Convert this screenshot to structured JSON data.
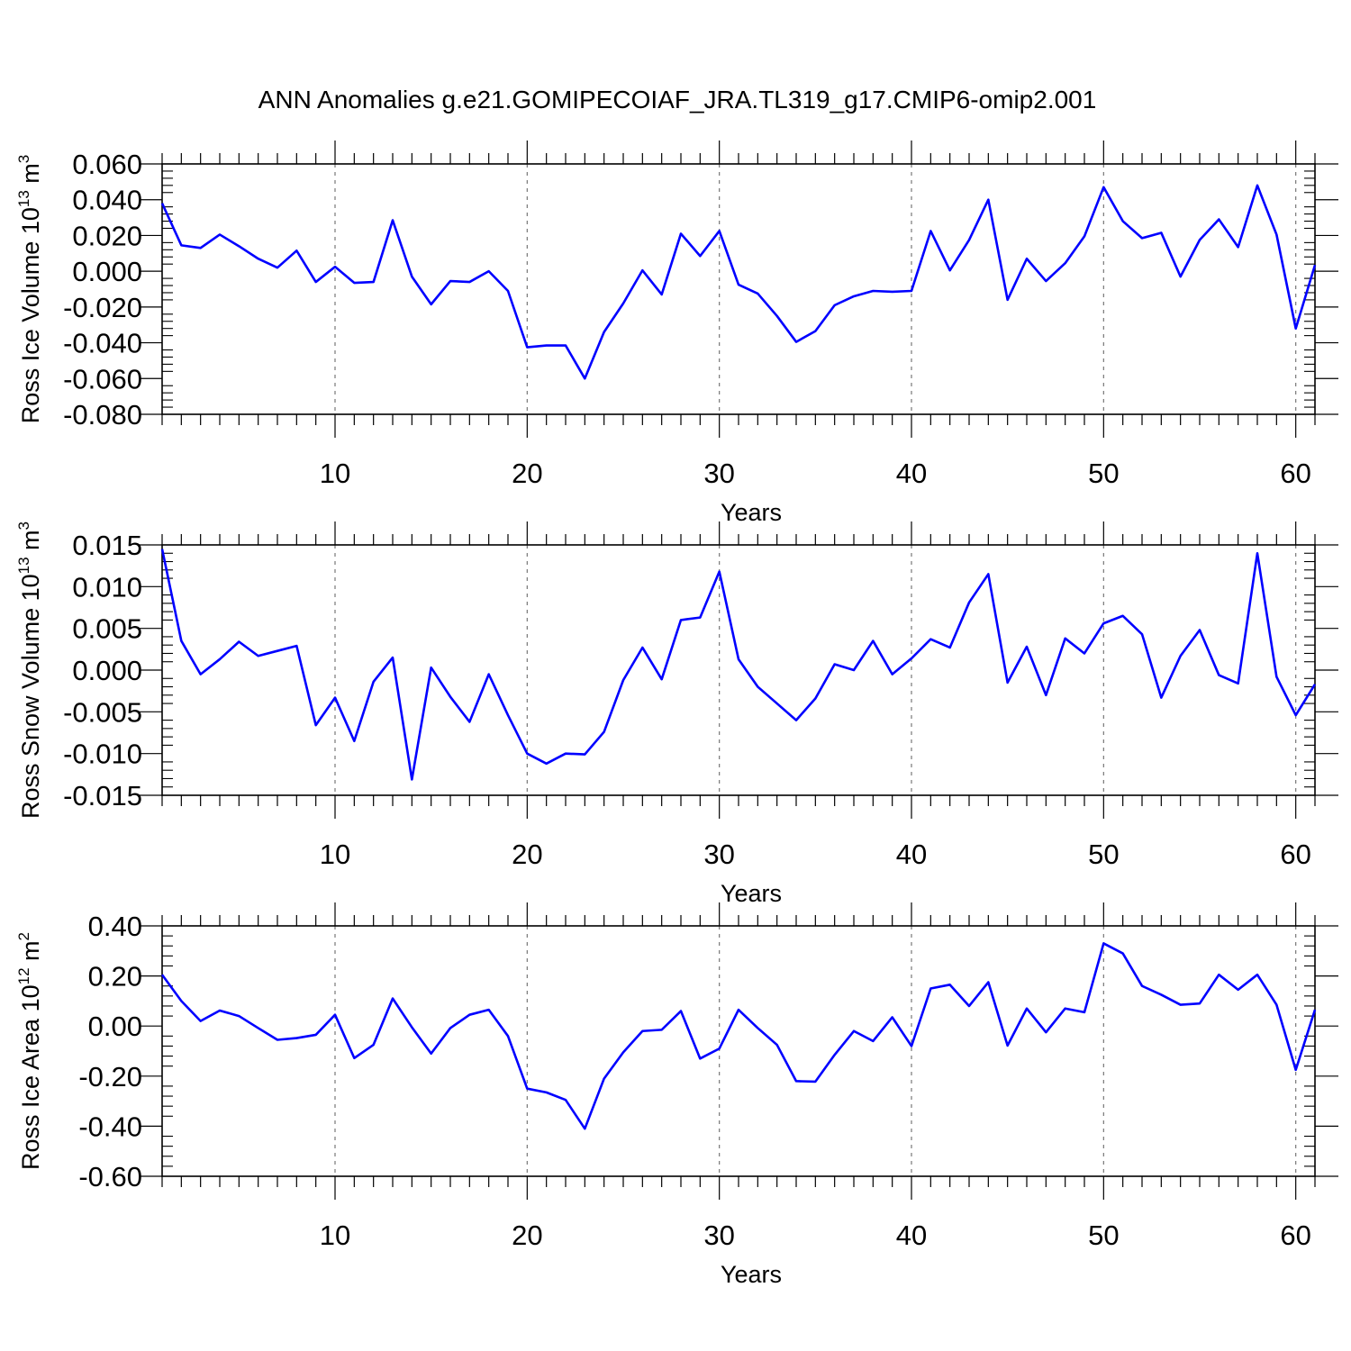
{
  "title": "ANN Anomalies g.e21.GOMIPECOIAF_JRA.TL319_g17.CMIP6-omip2.001",
  "colors": {
    "line": "#0000ff",
    "grid": "#777777",
    "axis": "#000000"
  },
  "chart_data": [
    {
      "type": "line",
      "ylabel": {
        "text": "Ross Ice Volume 10",
        "sup": "13",
        "unit": " m",
        "unit_sup": "3"
      },
      "xlabel": "Years",
      "xlim": [
        1,
        61
      ],
      "ylim": [
        -0.08,
        0.06
      ],
      "xticks": [
        10,
        20,
        30,
        40,
        50,
        60
      ],
      "yticks": [
        -0.08,
        -0.06,
        -0.04,
        -0.02,
        0.0,
        0.02,
        0.04,
        0.06
      ],
      "ytick_labels": [
        "-0.080",
        "-0.060",
        "-0.040",
        "-0.020",
        "0.000",
        "0.020",
        "0.040",
        "0.060"
      ],
      "grid_x": true,
      "series": [
        {
          "values": [
            0.038,
            0.0145,
            0.013,
            0.0205,
            0.014,
            0.007,
            0.002,
            0.0115,
            -0.006,
            0.0025,
            -0.0065,
            -0.006,
            0.0285,
            -0.003,
            -0.0185,
            -0.0055,
            -0.006,
            0.0,
            -0.011,
            -0.0425,
            -0.0415,
            -0.0415,
            -0.06,
            -0.034,
            -0.018,
            0.0005,
            -0.013,
            0.021,
            0.0085,
            0.0225,
            -0.0075,
            -0.0125,
            -0.025,
            -0.0395,
            -0.0335,
            -0.019,
            -0.014,
            -0.011,
            -0.0115,
            -0.011,
            0.0225,
            0.0005,
            0.0175,
            0.04,
            -0.016,
            0.007,
            -0.0055,
            0.0045,
            0.0195,
            0.047,
            0.028,
            0.0185,
            0.0215,
            -0.003,
            0.0175,
            0.029,
            0.0135,
            0.048,
            0.0205,
            -0.032,
            0.0035
          ]
        }
      ]
    },
    {
      "type": "line",
      "ylabel": {
        "text": "Ross Snow Volume 10",
        "sup": "13",
        "unit": " m",
        "unit_sup": "3"
      },
      "xlabel": "Years",
      "xlim": [
        1,
        61
      ],
      "ylim": [
        -0.015,
        0.015
      ],
      "xticks": [
        10,
        20,
        30,
        40,
        50,
        60
      ],
      "yticks": [
        -0.015,
        -0.01,
        -0.005,
        0.0,
        0.005,
        0.01,
        0.015
      ],
      "ytick_labels": [
        "-0.015",
        "-0.010",
        "-0.005",
        "0.000",
        "0.005",
        "0.010",
        "0.015"
      ],
      "grid_x": true,
      "series": [
        {
          "values": [
            0.0145,
            0.0035,
            -0.0005,
            0.0013,
            0.0034,
            0.0017,
            0.0023,
            0.0029,
            -0.0066,
            -0.0033,
            -0.0085,
            -0.0014,
            0.0015,
            -0.0131,
            0.0003,
            -0.0032,
            -0.0062,
            -0.0005,
            -0.0054,
            -0.01,
            -0.0112,
            -0.01,
            -0.0101,
            -0.0074,
            -0.0012,
            0.0027,
            -0.0011,
            0.006,
            0.0063,
            0.0118,
            0.0013,
            -0.002,
            -0.004,
            -0.006,
            -0.0034,
            0.0007,
            0.0,
            0.0035,
            -0.0005,
            0.0014,
            0.0037,
            0.0027,
            0.0081,
            0.0115,
            -0.0015,
            0.0028,
            -0.003,
            0.0038,
            0.002,
            0.0056,
            0.0065,
            0.0043,
            -0.0033,
            0.0017,
            0.0048,
            -0.0006,
            -0.0016,
            0.014,
            -0.0008,
            -0.0054,
            -0.0017
          ]
        }
      ]
    },
    {
      "type": "line",
      "ylabel": {
        "text": "Ross Ice Area 10",
        "sup": "12",
        "unit": " m",
        "unit_sup": "2"
      },
      "xlabel": "Years",
      "xlim": [
        1,
        61
      ],
      "ylim": [
        -0.6,
        0.4
      ],
      "xticks": [
        10,
        20,
        30,
        40,
        50,
        60
      ],
      "yticks": [
        -0.6,
        -0.4,
        -0.2,
        0.0,
        0.2,
        0.4
      ],
      "ytick_labels": [
        "-0.60",
        "-0.40",
        "-0.20",
        "0.00",
        "0.20",
        "0.40"
      ],
      "grid_x": true,
      "series": [
        {
          "values": [
            0.205,
            0.1,
            0.02,
            0.062,
            0.04,
            -0.008,
            -0.055,
            -0.048,
            -0.035,
            0.045,
            -0.128,
            -0.075,
            0.11,
            -0.005,
            -0.11,
            -0.008,
            0.045,
            0.065,
            -0.04,
            -0.25,
            -0.265,
            -0.295,
            -0.41,
            -0.21,
            -0.105,
            -0.02,
            -0.015,
            0.06,
            -0.13,
            -0.09,
            0.065,
            -0.008,
            -0.075,
            -0.22,
            -0.222,
            -0.115,
            -0.02,
            -0.06,
            0.035,
            -0.08,
            0.15,
            0.165,
            0.08,
            0.175,
            -0.078,
            0.07,
            -0.025,
            0.07,
            0.055,
            0.33,
            0.29,
            0.16,
            0.125,
            0.085,
            0.09,
            0.205,
            0.145,
            0.205,
            0.085,
            -0.175,
            0.065
          ]
        }
      ]
    }
  ]
}
